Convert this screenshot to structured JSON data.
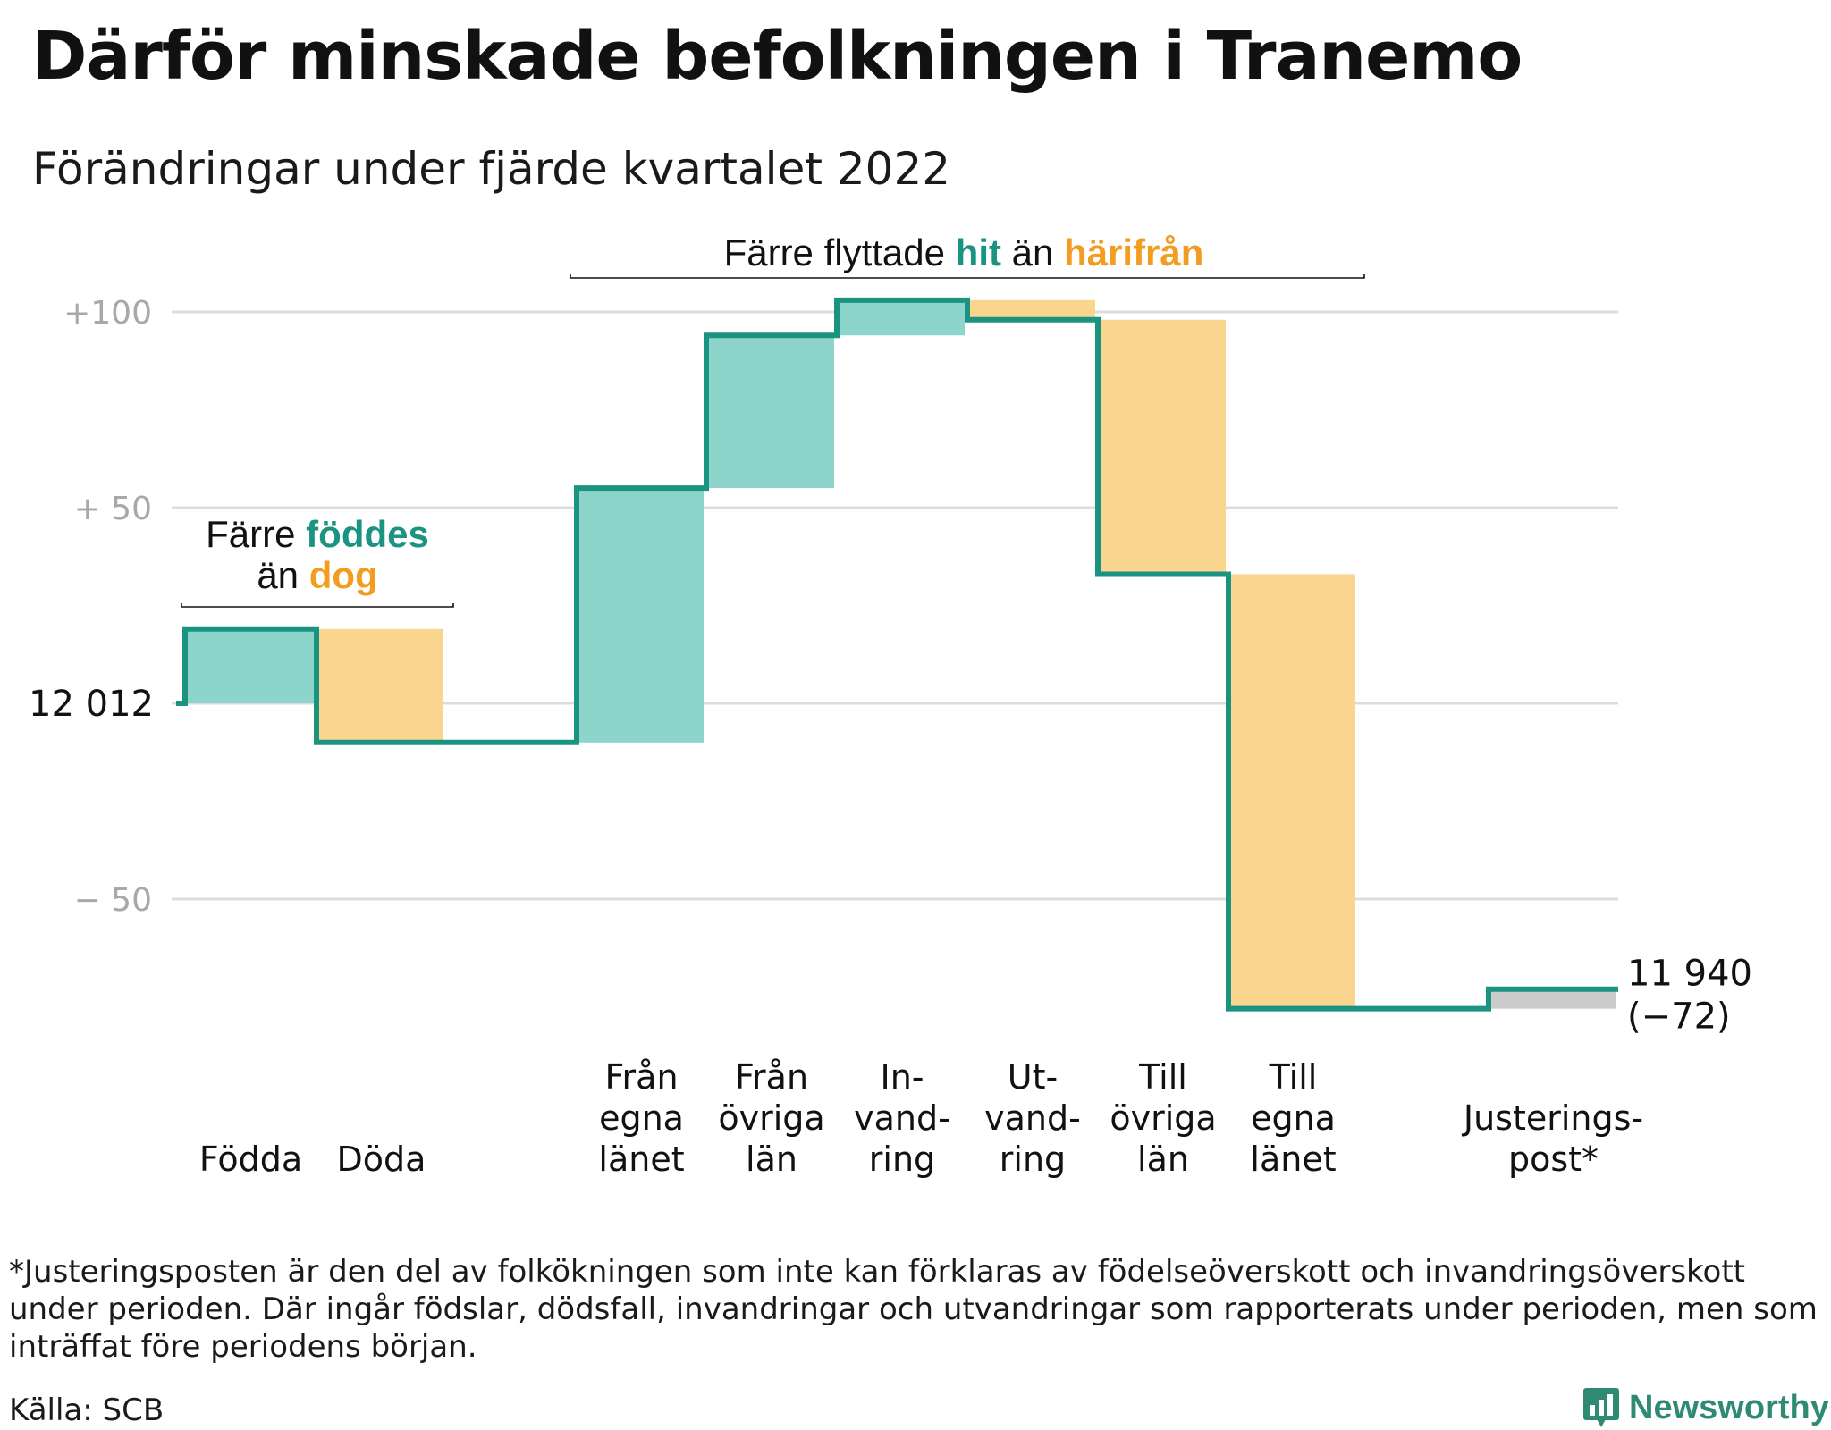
{
  "title": "Därför minskade befolkningen i Tranemo",
  "subtitle": "Förändringar under fjärde kvartalet 2022",
  "colors": {
    "inflow": "#8dd4cb",
    "outflow": "#fad58d",
    "adjustment": "#cccccc",
    "line": "#1a9381",
    "teal_text": "#1a9381",
    "orange_text": "#f29d22",
    "gridline": "#dcdcdc",
    "tick_label": "#a8a8a8"
  },
  "chart_data": {
    "type": "waterfall",
    "start_value": 12012,
    "start_label": "12 012",
    "end_value": 11940,
    "end_label": "11 940",
    "end_change_label": "(−72)",
    "y_ticks": [
      {
        "value": 100,
        "label": "+100"
      },
      {
        "value": 50,
        "label": "+ 50"
      },
      {
        "value": -50,
        "label": "− 50"
      }
    ],
    "ylim": [
      -90,
      110
    ],
    "steps": [
      {
        "label_lines": [
          "Födda"
        ],
        "change": 19,
        "kind": "inflow"
      },
      {
        "label_lines": [
          "Döda"
        ],
        "change": -29,
        "kind": "outflow"
      },
      {
        "label_lines": [
          "Från",
          "egna",
          "länet"
        ],
        "change": 65,
        "kind": "inflow"
      },
      {
        "label_lines": [
          "Från",
          "övriga",
          "län"
        ],
        "change": 39,
        "kind": "inflow"
      },
      {
        "label_lines": [
          "In-",
          "vand-",
          "ring"
        ],
        "change": 9,
        "kind": "inflow"
      },
      {
        "label_lines": [
          "Ut-",
          "vand-",
          "ring"
        ],
        "change": -5,
        "kind": "outflow"
      },
      {
        "label_lines": [
          "Till",
          "övriga",
          "län"
        ],
        "change": -65,
        "kind": "outflow"
      },
      {
        "label_lines": [
          "Till",
          "egna",
          "länet"
        ],
        "change": -111,
        "kind": "outflow"
      },
      {
        "label_lines": [
          "Justerings-",
          "post*"
        ],
        "change": 5,
        "kind": "adjustment"
      }
    ],
    "annotations": {
      "births": {
        "line1_plain": "Färre ",
        "line1_teal": "föddes",
        "line2_plain": "än ",
        "line2_orange": "dog"
      },
      "migration": {
        "plain1": "Färre flyttade ",
        "teal": "hit",
        "plain2": " än ",
        "orange": "härifrån"
      }
    }
  },
  "footnote": "*Justeringsposten är den del av folkökningen som inte kan förklaras av födelseöverskott och invandringsöverskott under perioden. Där ingår födslar, dödsfall, invandringar och utvandringar som rapporterats under perioden, men som inträffat före periodens början.",
  "source": "Källa: SCB",
  "brand": "Newsworthy",
  "brand_icon": "bar-chart-speech-bubble-icon"
}
